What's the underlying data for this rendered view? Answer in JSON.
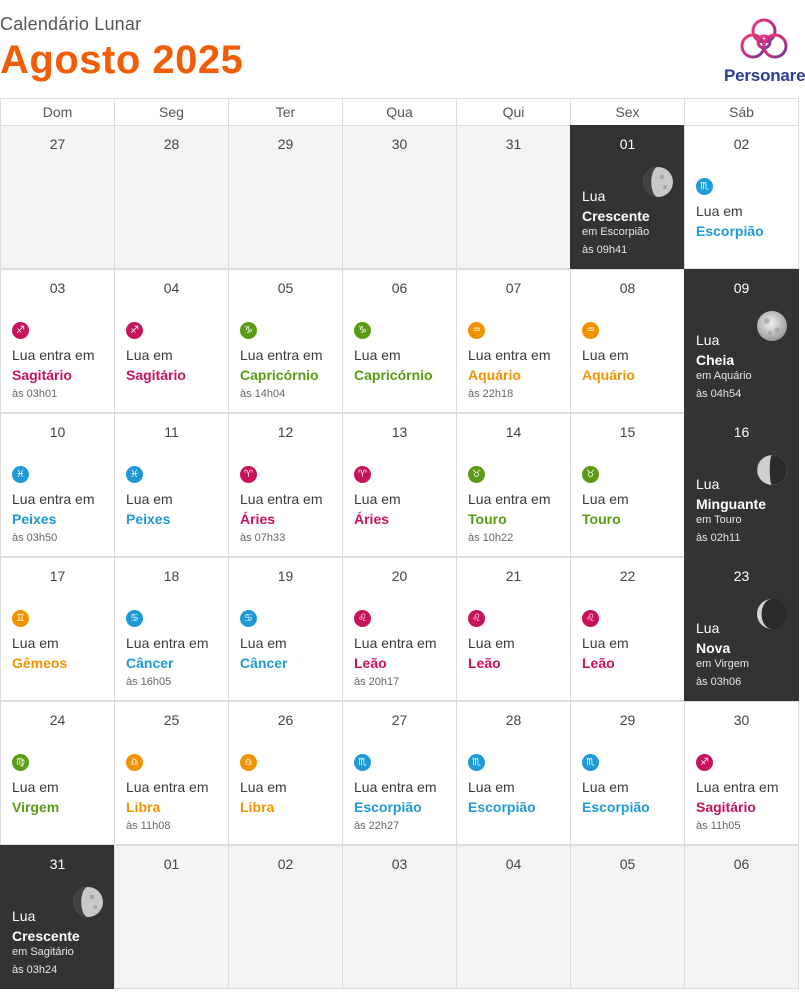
{
  "header": {
    "subtitle": "Calendário Lunar",
    "title": "Agosto 2025",
    "logo_text": "Personare"
  },
  "colors": {
    "title": "#f25c05",
    "Sagitário": "#c8125c",
    "Capricórnio": "#5a9b12",
    "Aquário": "#f39200",
    "Peixes": "#1e9ad6",
    "Áries": "#c8125c",
    "Touro": "#5a9b12",
    "Gêmeos": "#f39200",
    "Câncer": "#1e9ad6",
    "Leão": "#c8125c",
    "Virgem": "#5a9b12",
    "Libra": "#f39200",
    "Escorpião": "#1e9ad6"
  },
  "weekdays": [
    "Dom",
    "Seg",
    "Ter",
    "Qua",
    "Qui",
    "Sex",
    "Sáb"
  ],
  "weeks": [
    [
      {
        "day": "27",
        "type": "other"
      },
      {
        "day": "28",
        "type": "other"
      },
      {
        "day": "29",
        "type": "other"
      },
      {
        "day": "30",
        "type": "other"
      },
      {
        "day": "31",
        "type": "other"
      },
      {
        "day": "01",
        "type": "phase",
        "lua": "Lua",
        "phase": "Crescente",
        "sign_text": "em Escorpião",
        "time": "às 09h41",
        "moon": "waxing-gibbous"
      },
      {
        "day": "02",
        "type": "sign",
        "line1": "Lua em",
        "sign": "Escorpião",
        "glyph": "♏",
        "time": ""
      }
    ],
    [
      {
        "day": "03",
        "type": "sign",
        "line1": "Lua entra em",
        "sign": "Sagitário",
        "glyph": "♐",
        "time": "às 03h01"
      },
      {
        "day": "04",
        "type": "sign",
        "line1": "Lua em",
        "sign": "Sagitário",
        "glyph": "♐",
        "time": ""
      },
      {
        "day": "05",
        "type": "sign",
        "line1": "Lua entra em",
        "sign": "Capricórnio",
        "glyph": "♑",
        "time": "às 14h04"
      },
      {
        "day": "06",
        "type": "sign",
        "line1": "Lua em",
        "sign": "Capricórnio",
        "glyph": "♑",
        "time": ""
      },
      {
        "day": "07",
        "type": "sign",
        "line1": "Lua entra em",
        "sign": "Aquário",
        "glyph": "♒",
        "time": "às 22h18"
      },
      {
        "day": "08",
        "type": "sign",
        "line1": "Lua em",
        "sign": "Aquário",
        "glyph": "♒",
        "time": ""
      },
      {
        "day": "09",
        "type": "phase",
        "lua": "Lua",
        "phase": "Cheia",
        "sign_text": "em Aquário",
        "time": "às 04h54",
        "moon": "full"
      }
    ],
    [
      {
        "day": "10",
        "type": "sign",
        "line1": "Lua entra em",
        "sign": "Peixes",
        "glyph": "♓",
        "time": "às 03h50"
      },
      {
        "day": "11",
        "type": "sign",
        "line1": "Lua em",
        "sign": "Peixes",
        "glyph": "♓",
        "time": ""
      },
      {
        "day": "12",
        "type": "sign",
        "line1": "Lua entra em",
        "sign": "Áries",
        "glyph": "♈",
        "time": "às 07h33"
      },
      {
        "day": "13",
        "type": "sign",
        "line1": "Lua em",
        "sign": "Áries",
        "glyph": "♈",
        "time": ""
      },
      {
        "day": "14",
        "type": "sign",
        "line1": "Lua entra em",
        "sign": "Touro",
        "glyph": "♉",
        "time": "às 10h22"
      },
      {
        "day": "15",
        "type": "sign",
        "line1": "Lua em",
        "sign": "Touro",
        "glyph": "♉",
        "time": ""
      },
      {
        "day": "16",
        "type": "phase",
        "lua": "Lua",
        "phase": "Minguante",
        "sign_text": "em Touro",
        "time": "às 02h11",
        "moon": "waning"
      }
    ],
    [
      {
        "day": "17",
        "type": "sign",
        "line1": "Lua em",
        "sign": "Gêmeos",
        "glyph": "♊",
        "time": ""
      },
      {
        "day": "18",
        "type": "sign",
        "line1": "Lua entra em",
        "sign": "Câncer",
        "glyph": "♋",
        "time": "às 16h05"
      },
      {
        "day": "19",
        "type": "sign",
        "line1": "Lua em",
        "sign": "Câncer",
        "glyph": "♋",
        "time": ""
      },
      {
        "day": "20",
        "type": "sign",
        "line1": "Lua entra em",
        "sign": "Leão",
        "glyph": "♌",
        "time": "às 20h17"
      },
      {
        "day": "21",
        "type": "sign",
        "line1": "Lua em",
        "sign": "Leão",
        "glyph": "♌",
        "time": ""
      },
      {
        "day": "22",
        "type": "sign",
        "line1": "Lua em",
        "sign": "Leão",
        "glyph": "♌",
        "time": ""
      },
      {
        "day": "23",
        "type": "phase",
        "lua": "Lua",
        "phase": "Nova",
        "sign_text": "em Virgem",
        "time": "às 03h06",
        "moon": "new"
      }
    ],
    [
      {
        "day": "24",
        "type": "sign",
        "line1": "Lua em",
        "sign": "Virgem",
        "glyph": "♍",
        "time": ""
      },
      {
        "day": "25",
        "type": "sign",
        "line1": "Lua entra em",
        "sign": "Libra",
        "glyph": "♎",
        "time": "às 11h08"
      },
      {
        "day": "26",
        "type": "sign",
        "line1": "Lua em",
        "sign": "Libra",
        "glyph": "♎",
        "time": ""
      },
      {
        "day": "27",
        "type": "sign",
        "line1": "Lua entra em",
        "sign": "Escorpião",
        "glyph": "♏",
        "time": "às 22h27"
      },
      {
        "day": "28",
        "type": "sign",
        "line1": "Lua em",
        "sign": "Escorpião",
        "glyph": "♏",
        "time": ""
      },
      {
        "day": "29",
        "type": "sign",
        "line1": "Lua em",
        "sign": "Escorpião",
        "glyph": "♏",
        "time": ""
      },
      {
        "day": "30",
        "type": "sign",
        "line1": "Lua entra em",
        "sign": "Sagitário",
        "glyph": "♐",
        "time": "às 11h05"
      }
    ],
    [
      {
        "day": "31",
        "type": "phase",
        "lua": "Lua",
        "phase": "Crescente",
        "sign_text": "em Sagitário",
        "time": "às 03h24",
        "moon": "waxing-gibbous"
      },
      {
        "day": "01",
        "type": "other"
      },
      {
        "day": "02",
        "type": "other"
      },
      {
        "day": "03",
        "type": "other"
      },
      {
        "day": "04",
        "type": "other"
      },
      {
        "day": "05",
        "type": "other"
      },
      {
        "day": "06",
        "type": "other"
      }
    ]
  ]
}
